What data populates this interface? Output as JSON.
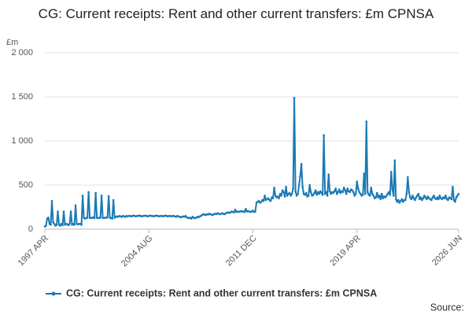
{
  "chart_data": {
    "type": "line",
    "title": "CG: Current receipts: Rent and other current transfers: £m CPNSA",
    "y_unit": "£m",
    "source": "Source:",
    "categories": [
      "1997 APR",
      null,
      null,
      null,
      null,
      null,
      null,
      null,
      null,
      null,
      null,
      null,
      null,
      null,
      null,
      null,
      null,
      null,
      null,
      null,
      null,
      null,
      null,
      null,
      null,
      null,
      null,
      null,
      null,
      null,
      null,
      null,
      null,
      null,
      null,
      null,
      null,
      null,
      null,
      null,
      null,
      null,
      null,
      null,
      null,
      null,
      null,
      null,
      null,
      null,
      null,
      null,
      null,
      null,
      null,
      null,
      null,
      null,
      null,
      null,
      null,
      null,
      null,
      null,
      null,
      null,
      null,
      null,
      null,
      null,
      null,
      null,
      null,
      null,
      null,
      null,
      null,
      null,
      null,
      null,
      null,
      null,
      null,
      null,
      null,
      null,
      null,
      null,
      "2004 AUG",
      null,
      null,
      null,
      null,
      null,
      null,
      null,
      null,
      null,
      null,
      null,
      null,
      null,
      null,
      null,
      null,
      null,
      null,
      null,
      null,
      null,
      null,
      null,
      null,
      null,
      null,
      null,
      null,
      null,
      null,
      null,
      null,
      null,
      null,
      null,
      null,
      null,
      null,
      null,
      null,
      null,
      null,
      null,
      null,
      null,
      null,
      null,
      null,
      null,
      null,
      null,
      null,
      null,
      null,
      null,
      null,
      null,
      null,
      null,
      null,
      null,
      null,
      null,
      null,
      null,
      null,
      null,
      null,
      null,
      null,
      null,
      null,
      null,
      null,
      null,
      null,
      null,
      null,
      null,
      null,
      null,
      null,
      null,
      null,
      null,
      null,
      null,
      "2011 DEC",
      null,
      null,
      null,
      null,
      null,
      null,
      null,
      null,
      null,
      null,
      null,
      null,
      null,
      null,
      null,
      null,
      null,
      null,
      null,
      null,
      null,
      null,
      null,
      null,
      null,
      null,
      null,
      null,
      null,
      null,
      null,
      null,
      null,
      null,
      null,
      null,
      null,
      null,
      null,
      null,
      null,
      null,
      null,
      null,
      null,
      null,
      null,
      null,
      null,
      null,
      null,
      null,
      null,
      null,
      null,
      null,
      null,
      null,
      null,
      null,
      null,
      null,
      null,
      null,
      null,
      null,
      null,
      null,
      null,
      null,
      null,
      null,
      null,
      null,
      null,
      null,
      null,
      null,
      null,
      null,
      null,
      null,
      null,
      null,
      null,
      null,
      null,
      "2019 APR",
      null,
      null,
      null,
      null,
      null,
      null,
      null,
      null,
      null,
      null,
      null,
      null,
      null,
      null,
      null,
      null,
      null,
      null,
      null,
      null,
      null,
      null,
      null,
      null,
      null,
      null,
      null,
      null,
      null,
      null,
      null,
      null,
      null,
      null,
      null,
      null,
      null,
      null,
      null,
      null,
      null,
      null,
      null,
      null,
      null,
      null,
      null,
      null,
      null,
      null,
      null,
      null,
      null,
      null,
      null,
      null,
      null,
      null,
      null,
      null,
      null,
      null,
      null,
      null,
      null,
      null,
      null,
      null,
      null,
      null,
      null,
      null,
      null,
      null,
      null,
      null,
      null,
      null,
      null,
      null,
      null,
      null,
      null,
      null,
      null,
      "2026 JUN"
    ],
    "series": [
      {
        "name": "CG: Current receipts: Rent and other current transfers: £m CPNSA",
        "color": "#1a7ab5",
        "values": [
          30,
          40,
          120,
          130,
          60,
          50,
          320,
          80,
          60,
          40,
          50,
          200,
          50,
          40,
          60,
          45,
          200,
          50,
          60,
          55,
          45,
          60,
          200,
          50,
          60,
          50,
          270,
          60,
          55,
          60,
          60,
          50,
          380,
          130,
          120,
          125,
          130,
          420,
          130,
          125,
          130,
          135,
          125,
          410,
          130,
          125,
          130,
          130,
          380,
          130,
          125,
          130,
          130,
          135,
          375,
          130,
          125,
          120,
          330,
          130,
          140,
          145,
          140,
          150,
          145,
          140,
          150,
          145,
          140,
          150,
          145,
          150,
          150,
          145,
          150,
          155,
          150,
          145,
          150,
          150,
          155,
          150,
          145,
          150,
          150,
          155,
          150,
          145,
          150,
          155,
          150,
          150,
          145,
          150,
          155,
          150,
          150,
          145,
          150,
          150,
          145,
          150,
          155,
          150,
          145,
          150,
          150,
          145,
          150,
          150,
          145,
          140,
          150,
          145,
          140,
          135,
          140,
          145,
          140,
          150,
          135,
          130,
          125,
          130,
          120,
          140,
          130,
          125,
          130,
          140,
          135,
          145,
          150,
          160,
          170,
          165,
          160,
          170,
          165,
          175,
          170,
          165,
          160,
          170,
          175,
          170,
          180,
          175,
          170,
          175,
          180,
          175,
          170,
          180,
          185,
          190,
          185,
          190,
          200,
          195,
          190,
          220,
          195,
          200,
          195,
          200,
          205,
          200,
          200,
          195,
          230,
          200,
          205,
          200,
          195,
          200,
          210,
          195,
          200,
          300,
          310,
          320,
          300,
          310,
          330,
          320,
          380,
          330,
          340,
          350,
          330,
          320,
          360,
          350,
          470,
          380,
          360,
          370,
          350,
          400,
          380,
          440,
          420,
          370,
          480,
          380,
          400,
          410,
          380,
          400,
          460,
          1490,
          430,
          380,
          400,
          500,
          600,
          740,
          480,
          400,
          390,
          410,
          370,
          380,
          500,
          420,
          380,
          390,
          410,
          440,
          390,
          420,
          400,
          430,
          410,
          390,
          1065,
          400,
          420,
          380,
          620,
          430,
          400,
          420,
          410,
          430,
          460,
          400,
          420,
          450,
          410,
          430,
          420,
          470,
          440,
          400,
          460,
          430,
          420,
          450,
          440,
          420,
          380,
          400,
          540,
          460,
          420,
          400,
          380,
          390,
          630,
          400,
          1220,
          420,
          390,
          380,
          470,
          400,
          380,
          350,
          360,
          410,
          360,
          380,
          340,
          400,
          350,
          370,
          360,
          380,
          400,
          420,
          390,
          650,
          450,
          380,
          780,
          340,
          310,
          330,
          300,
          320,
          340,
          310,
          330,
          330,
          400,
          590,
          420,
          360,
          340,
          380,
          350,
          330,
          360,
          380,
          400,
          340,
          360,
          330,
          350,
          380,
          360,
          340,
          370,
          350,
          340,
          330,
          360,
          380,
          350,
          340,
          360,
          340,
          380,
          350,
          340,
          360,
          350,
          380,
          340,
          330,
          360,
          350,
          340,
          480,
          330,
          310,
          360,
          380,
          400
        ]
      }
    ],
    "ylim": [
      0,
      2000
    ],
    "yticks": [
      0,
      500,
      {
        "value": 1000,
        "label": "1 000"
      },
      {
        "value": 1500,
        "label": "1 500"
      },
      {
        "value": 2000,
        "label": "2 000"
      }
    ],
    "grid": true
  }
}
